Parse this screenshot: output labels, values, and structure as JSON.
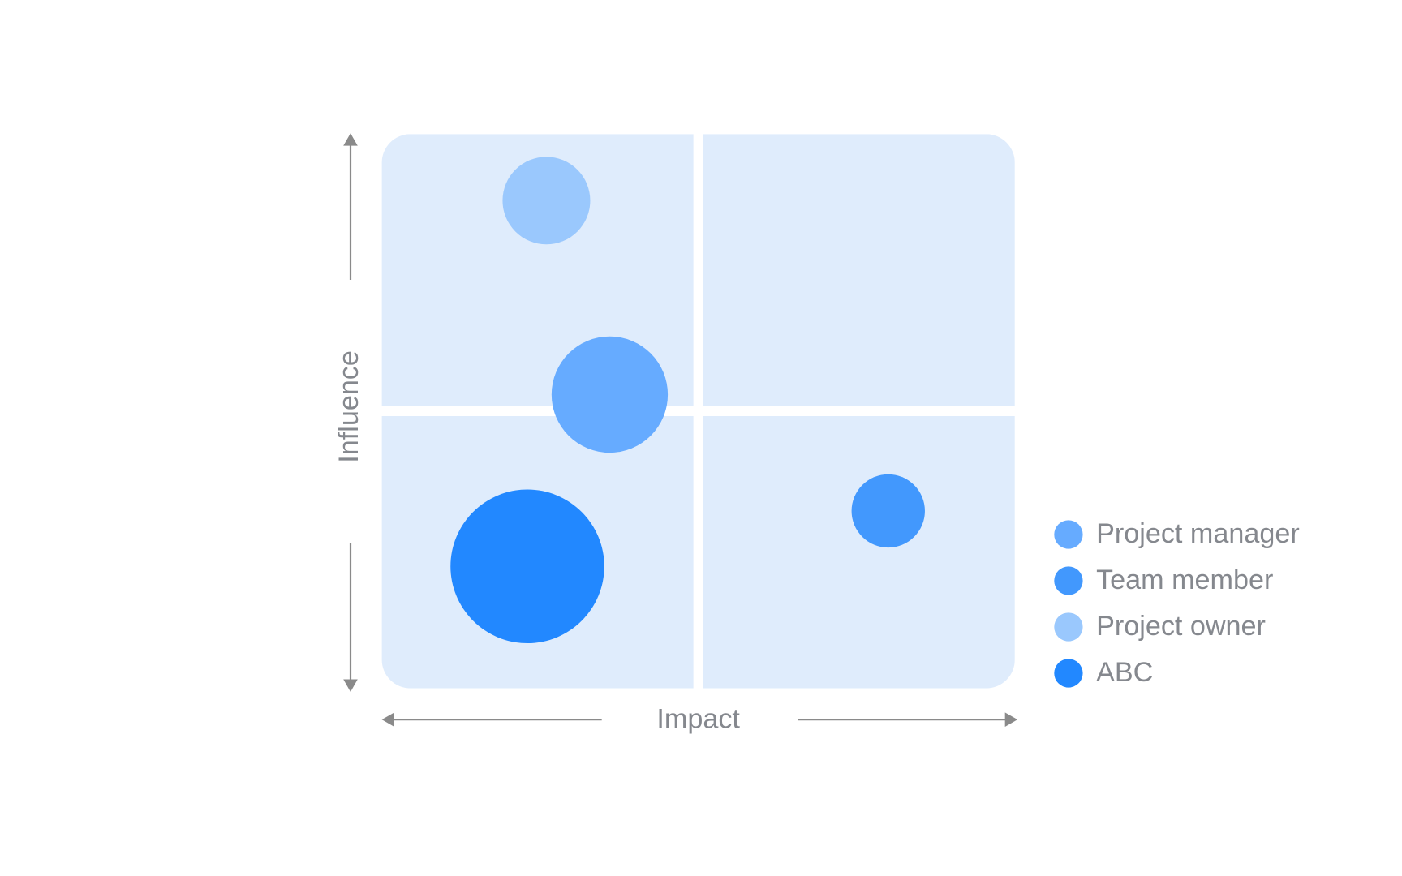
{
  "chart_data": {
    "type": "bubble",
    "x_label": "Impact",
    "y_label": "Influence",
    "xlim": [
      0,
      100
    ],
    "ylim": [
      0,
      100
    ],
    "legend": "right",
    "series": [
      {
        "name": "Project manager",
        "color": "#66abff",
        "x": [
          36
        ],
        "values": [
          53
        ],
        "sizes": [
          65
        ]
      },
      {
        "name": "Team member",
        "color": "#4298fd",
        "x": [
          80
        ],
        "values": [
          32
        ],
        "sizes": [
          41
        ]
      },
      {
        "name": "Project owner",
        "color": "#9ac8fd",
        "x": [
          26
        ],
        "values": [
          88
        ],
        "sizes": [
          49
        ]
      },
      {
        "name": "ABC",
        "color": "#2288ff",
        "x": [
          23
        ],
        "values": [
          22
        ],
        "sizes": [
          86
        ]
      }
    ]
  }
}
